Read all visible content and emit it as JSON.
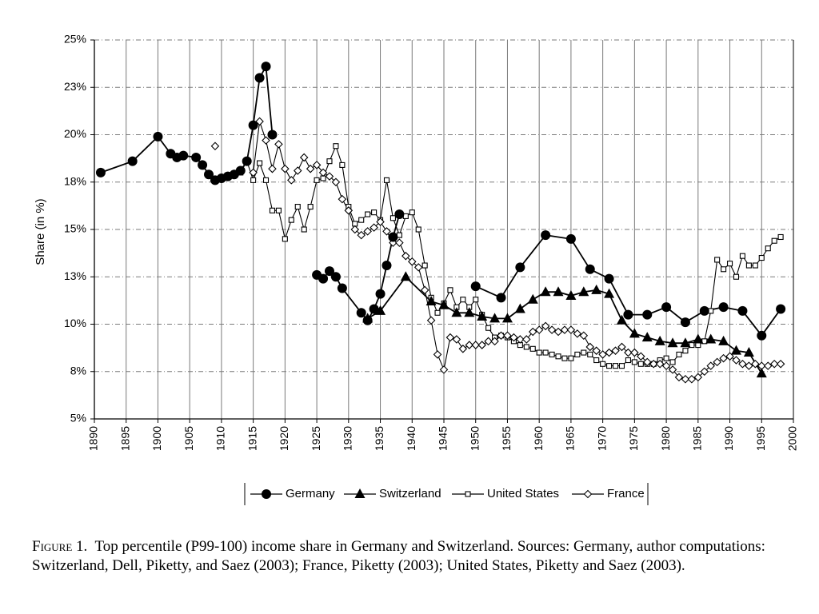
{
  "chart_data": {
    "type": "line",
    "xlabel": "",
    "ylabel": "Share (in %)",
    "xlim": [
      1890,
      2000
    ],
    "ylim": [
      5,
      25
    ],
    "x_ticks": [
      1890,
      1895,
      1900,
      1905,
      1910,
      1915,
      1920,
      1925,
      1930,
      1935,
      1940,
      1945,
      1950,
      1955,
      1960,
      1965,
      1970,
      1975,
      1980,
      1985,
      1990,
      1995,
      2000
    ],
    "y_ticks": [
      {
        "value": 5,
        "label": "5%"
      },
      {
        "value": 7.5,
        "label": "8%"
      },
      {
        "value": 10,
        "label": "10%"
      },
      {
        "value": 12.5,
        "label": "13%"
      },
      {
        "value": 15,
        "label": "15%"
      },
      {
        "value": 17.5,
        "label": "18%"
      },
      {
        "value": 20,
        "label": "20%"
      },
      {
        "value": 22.5,
        "label": "23%"
      },
      {
        "value": 25,
        "label": "25%"
      }
    ],
    "grid": "vertical-solid, horizontal-dashed",
    "legend_position": "bottom-center",
    "series": [
      {
        "name": "Germany",
        "marker": "filled-circle",
        "points": [
          [
            1891,
            18.0
          ],
          [
            1896,
            18.6
          ],
          [
            1900,
            19.9
          ],
          [
            1902,
            19.0
          ],
          [
            1903,
            18.8
          ],
          [
            1904,
            18.9
          ],
          [
            1906,
            18.8
          ],
          [
            1907,
            18.4
          ],
          [
            1908,
            17.9
          ],
          [
            1909,
            17.6
          ],
          [
            1910,
            17.7
          ],
          [
            1911,
            17.8
          ],
          [
            1912,
            17.9
          ],
          [
            1913,
            18.1
          ],
          [
            1914,
            18.6
          ],
          [
            1915,
            20.5
          ],
          [
            1916,
            23.0
          ],
          [
            1917,
            23.6
          ],
          [
            1918,
            20.0
          ],
          [
            1925,
            12.6
          ],
          [
            1926,
            12.4
          ],
          [
            1927,
            12.8
          ],
          [
            1928,
            12.5
          ],
          [
            1929,
            11.9
          ],
          [
            1932,
            10.6
          ],
          [
            1933,
            10.2
          ],
          [
            1934,
            10.8
          ],
          [
            1935,
            11.6
          ],
          [
            1936,
            13.1
          ],
          [
            1937,
            14.6
          ],
          [
            1938,
            15.8
          ],
          [
            1950,
            12.0
          ],
          [
            1954,
            11.4
          ],
          [
            1957,
            13.0
          ],
          [
            1961,
            14.7
          ],
          [
            1965,
            14.5
          ],
          [
            1968,
            12.9
          ],
          [
            1971,
            12.4
          ],
          [
            1974,
            10.5
          ],
          [
            1977,
            10.5
          ],
          [
            1980,
            10.9
          ],
          [
            1983,
            10.1
          ],
          [
            1986,
            10.7
          ],
          [
            1989,
            10.9
          ],
          [
            1992,
            10.7
          ],
          [
            1995,
            9.4
          ],
          [
            1998,
            10.8
          ]
        ]
      },
      {
        "name": "Switzerland",
        "marker": "filled-triangle",
        "points": [
          [
            1933,
            10.3
          ],
          [
            1935,
            10.7
          ],
          [
            1939,
            12.5
          ],
          [
            1943,
            11.2
          ],
          [
            1945,
            11.0
          ],
          [
            1947,
            10.6
          ],
          [
            1949,
            10.6
          ],
          [
            1951,
            10.4
          ],
          [
            1953,
            10.3
          ],
          [
            1955,
            10.3
          ],
          [
            1957,
            10.8
          ],
          [
            1959,
            11.3
          ],
          [
            1961,
            11.7
          ],
          [
            1963,
            11.7
          ],
          [
            1965,
            11.5
          ],
          [
            1967,
            11.7
          ],
          [
            1969,
            11.8
          ],
          [
            1971,
            11.6
          ],
          [
            1973,
            10.2
          ],
          [
            1975,
            9.5
          ],
          [
            1977,
            9.3
          ],
          [
            1979,
            9.1
          ],
          [
            1981,
            9.0
          ],
          [
            1983,
            9.0
          ],
          [
            1985,
            9.2
          ],
          [
            1987,
            9.2
          ],
          [
            1989,
            9.1
          ],
          [
            1991,
            8.6
          ],
          [
            1993,
            8.5
          ],
          [
            1995,
            7.4
          ]
        ]
      },
      {
        "name": "United States",
        "marker": "open-square",
        "points": [
          [
            1913,
            18.0
          ],
          [
            1914,
            18.6
          ],
          [
            1915,
            17.6
          ],
          [
            1916,
            18.5
          ],
          [
            1917,
            17.6
          ],
          [
            1918,
            16.0
          ],
          [
            1919,
            16.0
          ],
          [
            1920,
            14.5
          ],
          [
            1921,
            15.5
          ],
          [
            1922,
            16.2
          ],
          [
            1923,
            15.0
          ],
          [
            1924,
            16.2
          ],
          [
            1925,
            17.6
          ],
          [
            1926,
            17.7
          ],
          [
            1927,
            18.6
          ],
          [
            1928,
            19.4
          ],
          [
            1929,
            18.4
          ],
          [
            1930,
            16.2
          ],
          [
            1931,
            15.3
          ],
          [
            1932,
            15.5
          ],
          [
            1933,
            15.8
          ],
          [
            1934,
            15.9
          ],
          [
            1935,
            15.5
          ],
          [
            1936,
            17.6
          ],
          [
            1937,
            15.6
          ],
          [
            1938,
            14.7
          ],
          [
            1939,
            15.7
          ],
          [
            1940,
            15.9
          ],
          [
            1941,
            15.0
          ],
          [
            1942,
            13.1
          ],
          [
            1943,
            11.4
          ],
          [
            1944,
            10.6
          ],
          [
            1945,
            11.1
          ],
          [
            1946,
            11.8
          ],
          [
            1947,
            10.9
          ],
          [
            1948,
            11.3
          ],
          [
            1949,
            10.9
          ],
          [
            1950,
            11.3
          ],
          [
            1951,
            10.5
          ],
          [
            1952,
            9.8
          ],
          [
            1953,
            9.3
          ],
          [
            1954,
            9.4
          ],
          [
            1955,
            9.3
          ],
          [
            1956,
            9.1
          ],
          [
            1957,
            8.9
          ],
          [
            1958,
            8.8
          ],
          [
            1959,
            8.7
          ],
          [
            1960,
            8.5
          ],
          [
            1961,
            8.5
          ],
          [
            1962,
            8.4
          ],
          [
            1963,
            8.3
          ],
          [
            1964,
            8.2
          ],
          [
            1965,
            8.2
          ],
          [
            1966,
            8.4
          ],
          [
            1967,
            8.5
          ],
          [
            1968,
            8.4
          ],
          [
            1969,
            8.1
          ],
          [
            1970,
            7.9
          ],
          [
            1971,
            7.8
          ],
          [
            1972,
            7.8
          ],
          [
            1973,
            7.8
          ],
          [
            1974,
            8.1
          ],
          [
            1975,
            8.0
          ],
          [
            1976,
            7.9
          ],
          [
            1977,
            7.9
          ],
          [
            1978,
            7.9
          ],
          [
            1979,
            8.1
          ],
          [
            1980,
            8.2
          ],
          [
            1981,
            8.0
          ],
          [
            1982,
            8.4
          ],
          [
            1983,
            8.6
          ],
          [
            1984,
            8.9
          ],
          [
            1985,
            8.9
          ],
          [
            1986,
            9.1
          ],
          [
            1987,
            10.7
          ],
          [
            1988,
            13.4
          ],
          [
            1989,
            12.9
          ],
          [
            1990,
            13.2
          ],
          [
            1991,
            12.5
          ],
          [
            1992,
            13.6
          ],
          [
            1993,
            13.1
          ],
          [
            1994,
            13.1
          ],
          [
            1995,
            13.5
          ],
          [
            1996,
            14.0
          ],
          [
            1997,
            14.4
          ],
          [
            1998,
            14.6
          ]
        ]
      },
      {
        "name": "France",
        "marker": "open-diamond",
        "points": [
          [
            1909,
            19.4
          ],
          [
            1915,
            18.0
          ],
          [
            1916,
            20.7
          ],
          [
            1917,
            19.7
          ],
          [
            1918,
            18.2
          ],
          [
            1919,
            19.5
          ],
          [
            1920,
            18.2
          ],
          [
            1921,
            17.6
          ],
          [
            1922,
            18.1
          ],
          [
            1923,
            18.8
          ],
          [
            1924,
            18.2
          ],
          [
            1925,
            18.4
          ],
          [
            1926,
            18.0
          ],
          [
            1927,
            17.8
          ],
          [
            1928,
            17.5
          ],
          [
            1929,
            16.6
          ],
          [
            1930,
            16.0
          ],
          [
            1931,
            15.0
          ],
          [
            1932,
            14.7
          ],
          [
            1933,
            14.9
          ],
          [
            1934,
            15.1
          ],
          [
            1935,
            15.4
          ],
          [
            1936,
            14.9
          ],
          [
            1937,
            14.3
          ],
          [
            1938,
            14.3
          ],
          [
            1939,
            13.6
          ],
          [
            1940,
            13.3
          ],
          [
            1941,
            13.0
          ],
          [
            1942,
            11.8
          ],
          [
            1943,
            10.2
          ],
          [
            1944,
            8.4
          ],
          [
            1945,
            7.6
          ],
          [
            1946,
            9.3
          ],
          [
            1947,
            9.2
          ],
          [
            1948,
            8.7
          ],
          [
            1949,
            8.9
          ],
          [
            1950,
            8.9
          ],
          [
            1951,
            8.9
          ],
          [
            1952,
            9.1
          ],
          [
            1953,
            9.1
          ],
          [
            1954,
            9.4
          ],
          [
            1955,
            9.4
          ],
          [
            1956,
            9.3
          ],
          [
            1957,
            9.2
          ],
          [
            1958,
            9.2
          ],
          [
            1959,
            9.6
          ],
          [
            1960,
            9.7
          ],
          [
            1961,
            9.9
          ],
          [
            1962,
            9.7
          ],
          [
            1963,
            9.6
          ],
          [
            1964,
            9.7
          ],
          [
            1965,
            9.7
          ],
          [
            1966,
            9.5
          ],
          [
            1967,
            9.4
          ],
          [
            1968,
            8.8
          ],
          [
            1969,
            8.6
          ],
          [
            1970,
            8.4
          ],
          [
            1971,
            8.5
          ],
          [
            1972,
            8.6
          ],
          [
            1973,
            8.8
          ],
          [
            1974,
            8.5
          ],
          [
            1975,
            8.5
          ],
          [
            1976,
            8.3
          ],
          [
            1977,
            8.0
          ],
          [
            1978,
            7.9
          ],
          [
            1979,
            7.9
          ],
          [
            1980,
            7.8
          ],
          [
            1981,
            7.6
          ],
          [
            1982,
            7.2
          ],
          [
            1983,
            7.1
          ],
          [
            1984,
            7.1
          ],
          [
            1985,
            7.2
          ],
          [
            1986,
            7.5
          ],
          [
            1987,
            7.8
          ],
          [
            1988,
            8.0
          ],
          [
            1989,
            8.2
          ],
          [
            1990,
            8.3
          ],
          [
            1991,
            8.1
          ],
          [
            1992,
            7.9
          ],
          [
            1993,
            7.8
          ],
          [
            1994,
            7.9
          ],
          [
            1995,
            7.8
          ],
          [
            1996,
            7.8
          ],
          [
            1997,
            7.9
          ],
          [
            1998,
            7.9
          ]
        ]
      }
    ]
  },
  "caption": {
    "label": "Figure 1.",
    "text": "Top percentile (P99-100) income share in Germany and Switzerland. Sources: Germany, author computations: Switzerland, Dell, Piketty, and Saez (2003); France, Piketty (2003); United States, Piketty and Saez (2003)."
  }
}
